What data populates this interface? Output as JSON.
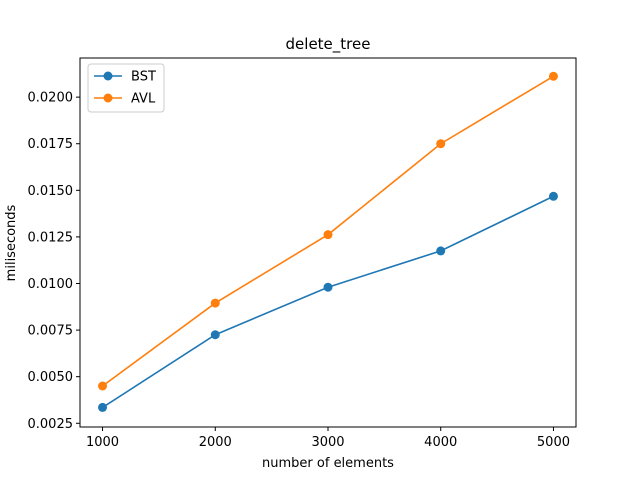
{
  "chart_data": {
    "type": "line",
    "title": "delete_tree",
    "xlabel": "number of elements",
    "ylabel": "miliseconds",
    "x": [
      1000,
      2000,
      3000,
      4000,
      5000
    ],
    "xticks": [
      1000,
      2000,
      3000,
      4000,
      5000
    ],
    "yticks": [
      0.0025,
      0.005,
      0.0075,
      0.01,
      0.0125,
      0.015,
      0.0175,
      0.02
    ],
    "ytick_labels": [
      "0.0025",
      "0.0050",
      "0.0075",
      "0.0100",
      "0.0125",
      "0.0150",
      "0.0175",
      "0.0200"
    ],
    "xlim": [
      800,
      5200
    ],
    "ylim": [
      0.0023,
      0.0221
    ],
    "grid": false,
    "legend_position": "top-left",
    "series": [
      {
        "name": "BST",
        "color": "#1f77b4",
        "values": [
          0.00335,
          0.00725,
          0.0098,
          0.01175,
          0.01468
        ]
      },
      {
        "name": "AVL",
        "color": "#ff7f0e",
        "values": [
          0.0045,
          0.00895,
          0.01262,
          0.0175,
          0.02112
        ]
      }
    ]
  }
}
